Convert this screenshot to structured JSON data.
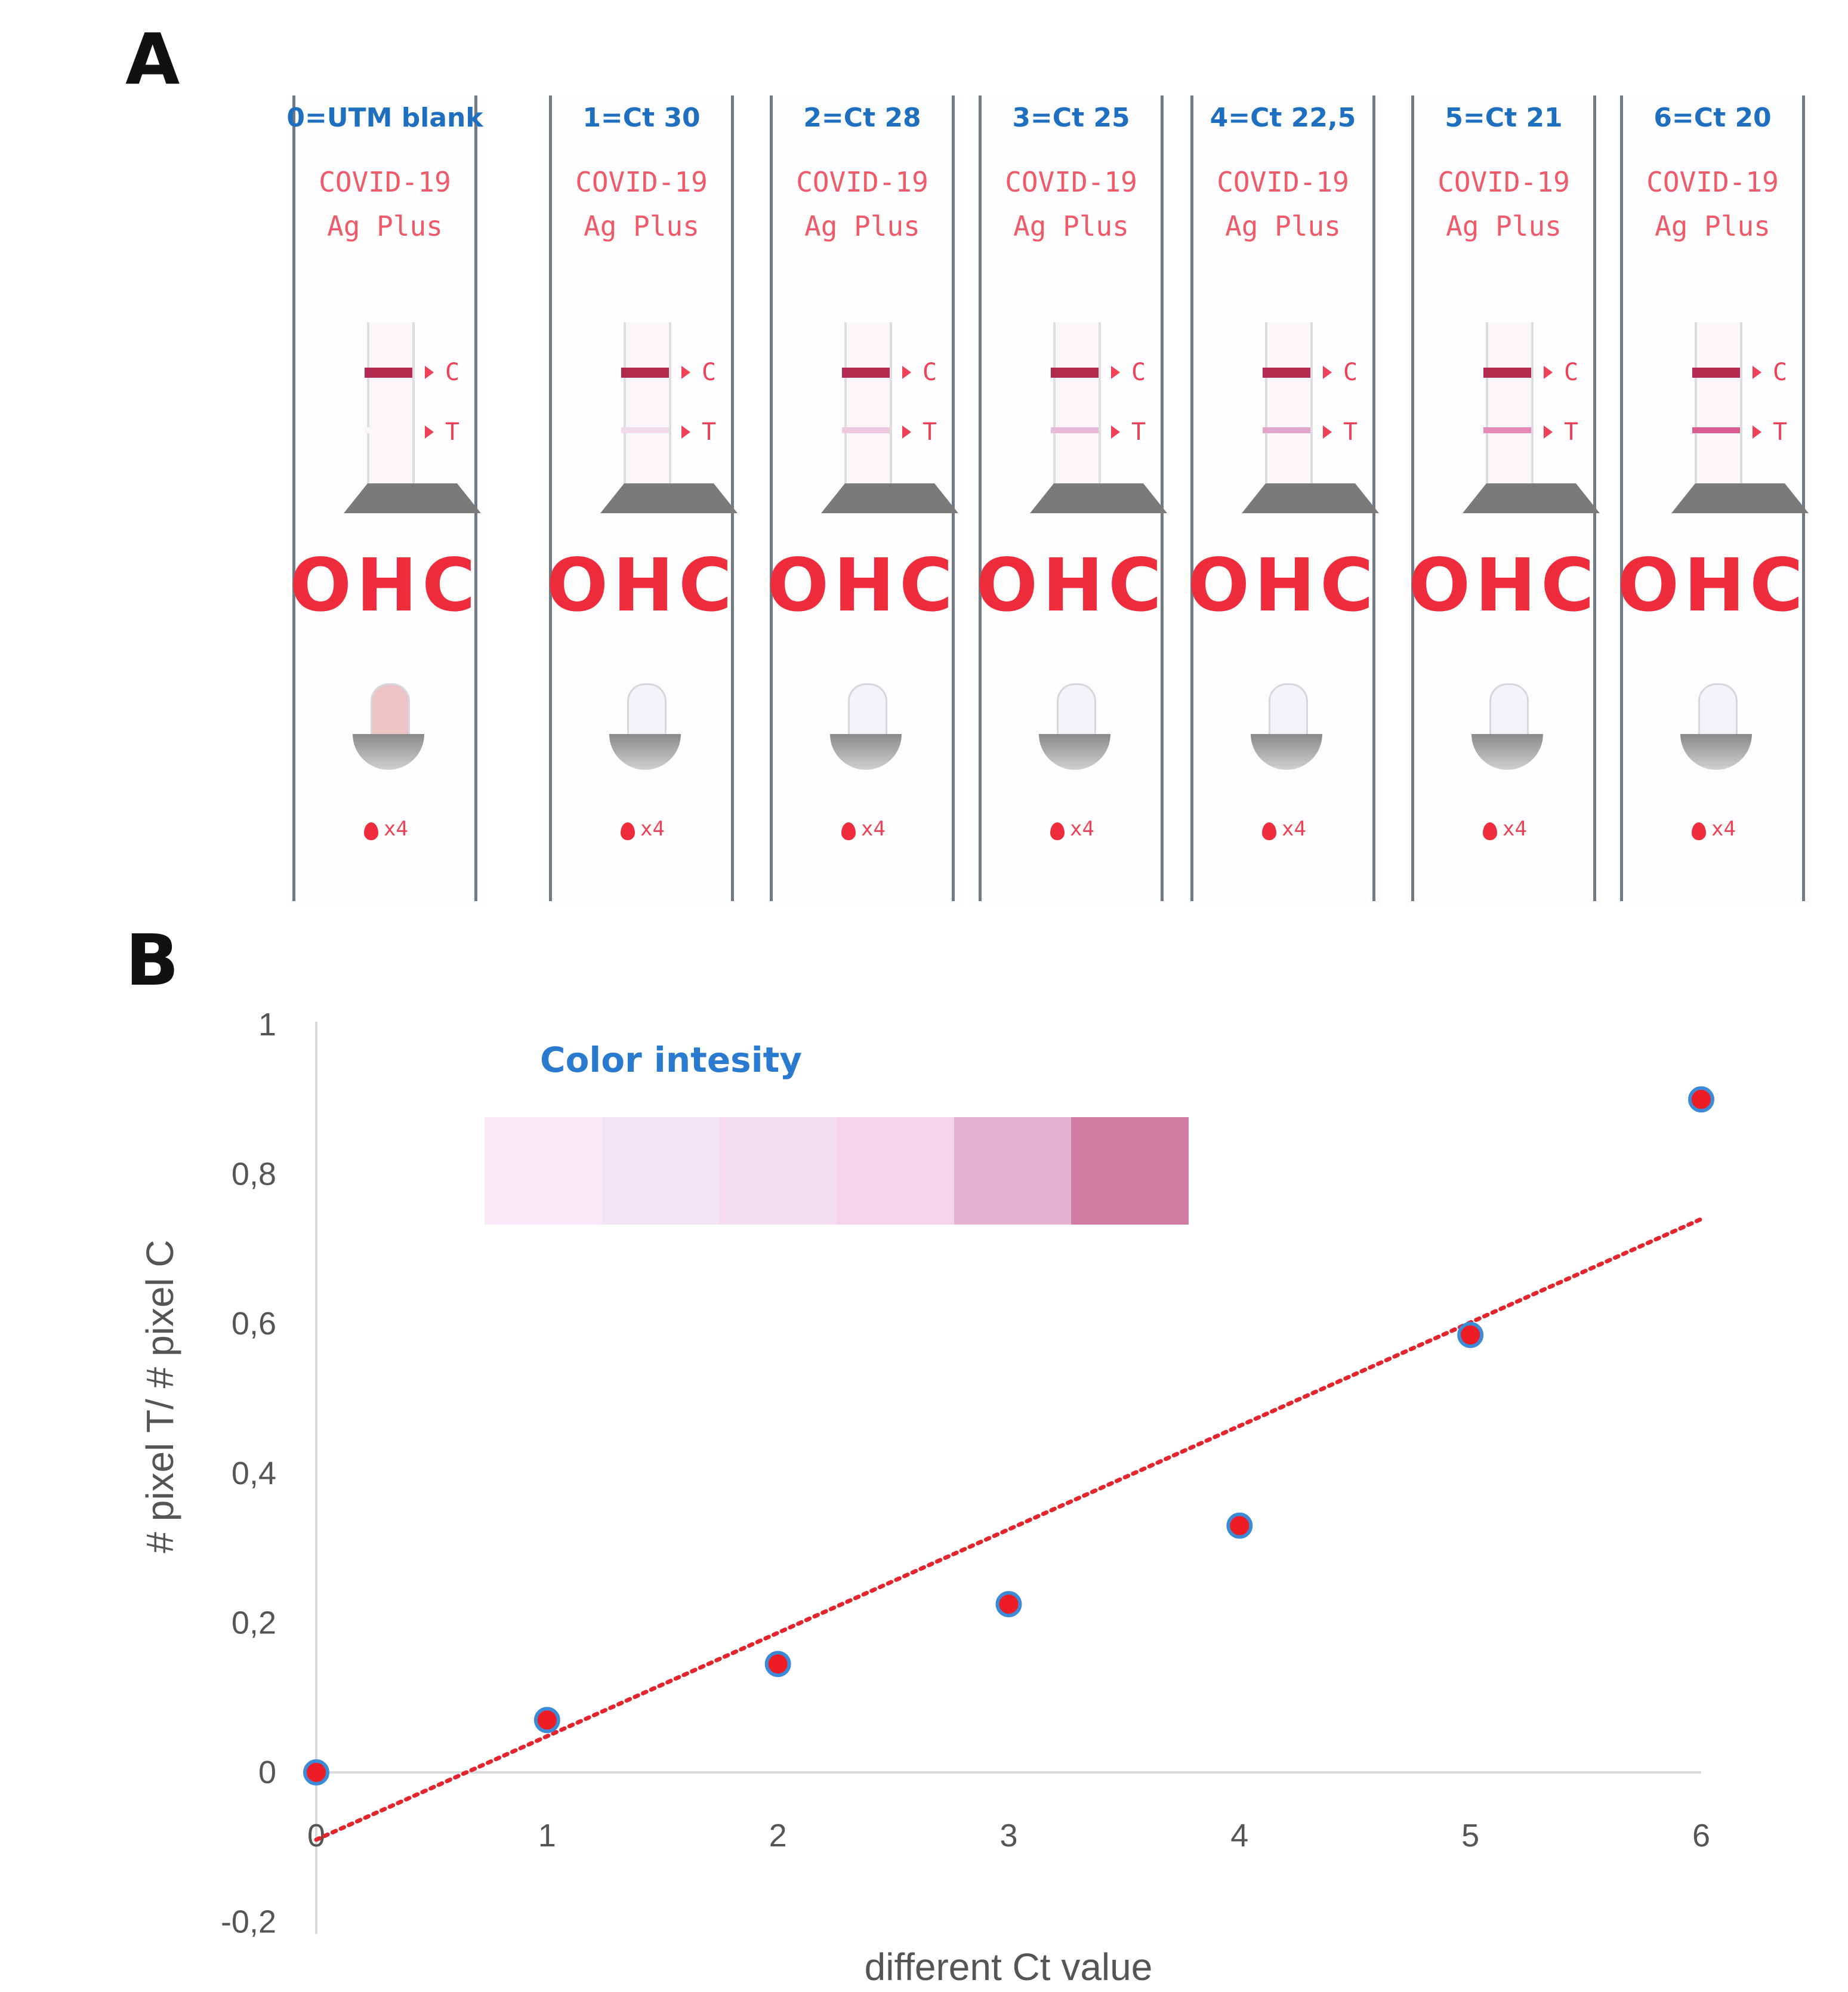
{
  "panels": {
    "a_label": "A",
    "b_label": "B"
  },
  "strips": [
    {
      "title": "0=UTM blank",
      "product_line1": "COVID-19",
      "product_line2": "Ag Plus",
      "control_mark": "C",
      "test_mark": "T",
      "brand": "OHC",
      "drop_count": "x4",
      "test_line_color": "#fbf6fa"
    },
    {
      "title": "1=Ct 30",
      "product_line1": "COVID-19",
      "product_line2": "Ag Plus",
      "control_mark": "C",
      "test_mark": "T",
      "brand": "OHC",
      "drop_count": "x4",
      "test_line_color": "#f1dbe8"
    },
    {
      "title": "2=Ct 28",
      "product_line1": "COVID-19",
      "product_line2": "Ag Plus",
      "control_mark": "C",
      "test_mark": "T",
      "brand": "OHC",
      "drop_count": "x4",
      "test_line_color": "#ecc9df"
    },
    {
      "title": "3=Ct 25",
      "product_line1": "COVID-19",
      "product_line2": "Ag Plus",
      "control_mark": "C",
      "test_mark": "T",
      "brand": "OHC",
      "drop_count": "x4",
      "test_line_color": "#e9b9d7"
    },
    {
      "title": "4=Ct 22,5",
      "product_line1": "COVID-19",
      "product_line2": "Ag Plus",
      "control_mark": "C",
      "test_mark": "T",
      "brand": "OHC",
      "drop_count": "x4",
      "test_line_color": "#e2a6ca"
    },
    {
      "title": "5=Ct 21",
      "product_line1": "COVID-19",
      "product_line2": "Ag Plus",
      "control_mark": "C",
      "test_mark": "T",
      "brand": "OHC",
      "drop_count": "x4",
      "test_line_color": "#e48ab5"
    },
    {
      "title": "6=Ct 20",
      "product_line1": "COVID-19",
      "product_line2": "Ag Plus",
      "control_mark": "C",
      "test_mark": "T",
      "brand": "OHC",
      "drop_count": "x4",
      "test_line_color": "#d95d91"
    }
  ],
  "legend": {
    "title": "Color intesity",
    "colors": [
      "#fbeaf6",
      "#f3e6f3",
      "#f6dcef",
      "#f4d3eb",
      "#e6b2d1",
      "#d17c9e"
    ]
  },
  "colors": {
    "marker_fill": "#ee1c25",
    "marker_edge": "#3d8ad6",
    "trend": "#e5252d",
    "axis": "#d9d9d9"
  },
  "chart_data": {
    "type": "scatter",
    "xlabel": "different Ct value",
    "ylabel": "# pixel T/ # pixel C",
    "xlim": [
      0,
      6
    ],
    "ylim": [
      -0.2,
      1
    ],
    "x_ticks": [
      "0",
      "1",
      "2",
      "3",
      "4",
      "5",
      "6"
    ],
    "y_ticks": [
      "-0,2",
      "0",
      "0,2",
      "0,4",
      "0,6",
      "0,8",
      "1"
    ],
    "y_tick_values": [
      -0.2,
      0,
      0.2,
      0.4,
      0.6,
      0.8,
      1
    ],
    "series": [
      {
        "name": "T/C ratio",
        "x": [
          0,
          1,
          2,
          3,
          4,
          5,
          6
        ],
        "y": [
          0,
          0.07,
          0.145,
          0.225,
          0.33,
          0.585,
          0.9
        ]
      }
    ],
    "trendline": {
      "type": "linear",
      "x": [
        0,
        6
      ],
      "y": [
        -0.09,
        0.74
      ]
    },
    "grid": false
  }
}
